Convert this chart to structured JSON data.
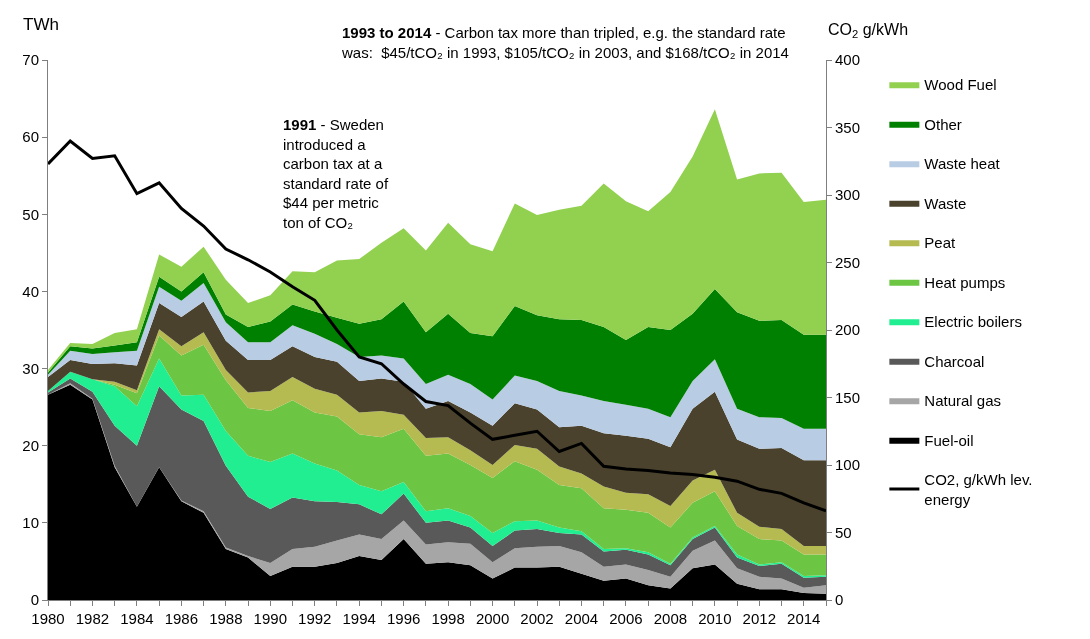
{
  "chart_data": {
    "type": "area",
    "stacked": true,
    "ylabel": "TWh",
    "y2label": "CO$_{2}$ g/kWh",
    "x": [
      1980,
      1981,
      1982,
      1983,
      1984,
      1985,
      1986,
      1987,
      1988,
      1989,
      1990,
      1991,
      1992,
      1993,
      1994,
      1995,
      1996,
      1997,
      1998,
      1999,
      2000,
      2001,
      2002,
      2003,
      2004,
      2005,
      2006,
      2007,
      2008,
      2009,
      2010,
      2011,
      2012,
      2013,
      2014,
      2015
    ],
    "xlim": [
      1980,
      2015
    ],
    "xticks": [
      1980,
      {
        "value": 1981,
        "label": null
      },
      1982,
      {
        "value": 1983,
        "label": null
      },
      1984,
      {
        "value": 1985,
        "label": null
      },
      1986,
      {
        "value": 1987,
        "label": null
      },
      1988,
      {
        "value": 1989,
        "label": null
      },
      1990,
      {
        "value": 1991,
        "label": null
      },
      1992,
      {
        "value": 1993,
        "label": null
      },
      1994,
      {
        "value": 1995,
        "label": null
      },
      1996,
      {
        "value": 1997,
        "label": null
      },
      1998,
      {
        "value": 1999,
        "label": null
      },
      2000,
      {
        "value": 2001,
        "label": null
      },
      2002,
      {
        "value": 2003,
        "label": null
      },
      2004,
      {
        "value": 2005,
        "label": null
      },
      2006,
      {
        "value": 2007,
        "label": null
      },
      2008,
      {
        "value": 2009,
        "label": null
      },
      2010,
      {
        "value": 2011,
        "label": null
      },
      2012,
      {
        "value": 2013,
        "label": null
      },
      2014,
      {
        "value": 2015,
        "label": null
      }
    ],
    "ylim": [
      0,
      70
    ],
    "yticks": [
      0,
      10,
      20,
      30,
      40,
      50,
      60,
      70
    ],
    "y2lim": [
      0,
      400
    ],
    "y2ticks": [
      0,
      50,
      100,
      150,
      200,
      250,
      300,
      350,
      400
    ],
    "legend": "right",
    "series": [
      {
        "name": "Fuel-oil",
        "color": "#000000",
        "values": [
          26.6,
          27.9,
          26.0,
          17.2,
          12.1,
          17.2,
          12.8,
          11.3,
          6.6,
          5.5,
          3.1,
          4.3,
          4.3,
          4.8,
          5.7,
          5.2,
          7.9,
          4.7,
          4.9,
          4.5,
          2.8,
          4.2,
          4.2,
          4.3,
          3.4,
          2.5,
          2.8,
          1.9,
          1.5,
          4.1,
          4.6,
          2.1,
          1.4,
          1.4,
          0.9,
          0.8
        ]
      },
      {
        "name": "Natural gas",
        "color": "#a6a6a6",
        "values": [
          0,
          0.2,
          0.1,
          0.2,
          0,
          0,
          0.1,
          0.2,
          0.2,
          0.2,
          1.7,
          2.3,
          2.6,
          2.9,
          2.8,
          2.7,
          2.4,
          2.5,
          2.6,
          2.8,
          2.1,
          2.5,
          2.7,
          2.7,
          2.8,
          1.8,
          1.8,
          2.0,
          1.5,
          2.3,
          3.1,
          2.0,
          1.6,
          1.4,
          0.7,
          1.1
        ]
      },
      {
        "name": "Charcoal",
        "color": "#595959",
        "values": [
          0.3,
          0.6,
          0.9,
          5.2,
          7.9,
          10.5,
          11.8,
          11.7,
          10.6,
          7.7,
          7.0,
          6.7,
          5.9,
          5.0,
          3.9,
          3.2,
          3.5,
          2.8,
          2.8,
          2.1,
          2.1,
          2.3,
          2.3,
          1.7,
          2.3,
          2.0,
          1.9,
          2.0,
          1.5,
          1.5,
          1.7,
          1.4,
          1.4,
          1.9,
          1.3,
          1.1
        ]
      },
      {
        "name": "Electric boilers",
        "color": "#21ee91",
        "values": [
          0.2,
          0.9,
          1.6,
          5.1,
          5.1,
          3.6,
          1.8,
          3.4,
          4.5,
          5.3,
          6.1,
          5.7,
          4.9,
          4.1,
          2.5,
          3.0,
          1.5,
          1.5,
          1.6,
          1.5,
          1.7,
          1.2,
          1.1,
          0.7,
          0.4,
          0.3,
          0.2,
          0.3,
          0.2,
          0.2,
          0.2,
          0.4,
          0.2,
          0.2,
          0.2,
          0.2
        ]
      },
      {
        "name": "Heat pumps",
        "color": "#6cc644",
        "values": [
          0,
          0,
          0,
          0.2,
          1.7,
          3.0,
          5.2,
          6.5,
          6.6,
          6.2,
          6.6,
          6.9,
          6.6,
          7.0,
          6.6,
          7.0,
          6.9,
          7.2,
          7.1,
          6.6,
          7.1,
          7.8,
          6.6,
          5.5,
          5.6,
          5.3,
          5.0,
          5.1,
          4.7,
          4.5,
          4.5,
          3.7,
          3.3,
          2.8,
          2.8,
          2.7
        ]
      },
      {
        "name": "Peat",
        "color": "#b5bb50",
        "values": [
          0,
          0,
          0,
          0.4,
          0.4,
          0.8,
          1.2,
          1.6,
          1.3,
          2.0,
          2.6,
          3.0,
          3.1,
          2.8,
          2.8,
          3.4,
          1.8,
          2.3,
          2.1,
          1.9,
          1.7,
          2.1,
          2.7,
          2.4,
          1.9,
          2.8,
          2.2,
          2.4,
          2.8,
          2.9,
          2.8,
          1.7,
          1.6,
          1.5,
          1.1,
          1.1
        ]
      },
      {
        "name": "Waste",
        "color": "#4a422c",
        "values": [
          1.8,
          1.5,
          2.0,
          2.4,
          3.2,
          3.4,
          3.8,
          4.0,
          3.8,
          4.2,
          4.0,
          4.0,
          4.1,
          4.3,
          4.1,
          4.2,
          4.3,
          3.8,
          4.7,
          4.9,
          5.1,
          5.4,
          5.1,
          5.1,
          6.2,
          6.9,
          7.4,
          7.2,
          7.6,
          9.3,
          10.1,
          9.5,
          10.1,
          10.5,
          11.1,
          11.1
        ]
      },
      {
        "name": "Waste heat",
        "color": "#b8cce4",
        "values": [
          0.3,
          1.2,
          1.3,
          1.4,
          1.9,
          2.1,
          2.1,
          2.4,
          2.4,
          2.3,
          2.3,
          2.7,
          3.0,
          2.3,
          3.1,
          3.0,
          3.0,
          3.2,
          3.4,
          3.7,
          3.4,
          3.6,
          3.7,
          4.7,
          3.9,
          4.2,
          4.0,
          3.9,
          3.9,
          3.6,
          4.2,
          4.0,
          4.1,
          3.9,
          4.1,
          4.1
        ]
      },
      {
        "name": "Other",
        "color": "#008000",
        "values": [
          0.3,
          0.6,
          0.7,
          0.9,
          1.1,
          1.3,
          1.2,
          1.4,
          1.0,
          2.0,
          2.7,
          2.7,
          2.9,
          3.4,
          4.3,
          4.7,
          7.4,
          6.7,
          7.9,
          6.6,
          8.2,
          9.0,
          8.5,
          9.3,
          9.8,
          9.6,
          8.4,
          10.6,
          11.3,
          8.7,
          9.1,
          12.5,
          12.5,
          12.7,
          12.2,
          12.2
        ]
      },
      {
        "name": "Wood Fuel",
        "color": "#92d050",
        "values": [
          0.3,
          0.4,
          0.6,
          1.6,
          1.7,
          2.9,
          3.2,
          3.3,
          4.5,
          3.1,
          3.4,
          4.3,
          5.1,
          7.4,
          8.4,
          9.9,
          9.5,
          10.6,
          11.8,
          11.5,
          11.0,
          13.3,
          13.0,
          14.2,
          14.8,
          18.6,
          18.0,
          15.0,
          17.9,
          20.4,
          23.3,
          17.2,
          19.1,
          19.1,
          17.2,
          17.5
        ]
      },
      {
        "name": "CO2, g/kWh lev. energy",
        "type": "line",
        "axis": "y2",
        "color": "#000000",
        "values": [
          323,
          340,
          327,
          329,
          301,
          309,
          290,
          277,
          260,
          252,
          243,
          232,
          222,
          200,
          180,
          175,
          160,
          147,
          144,
          131,
          119,
          122,
          125,
          110,
          116,
          99,
          97,
          96,
          94,
          93,
          91,
          88,
          82,
          79,
          72,
          66
        ]
      }
    ],
    "annotations": [
      "1991 - Sweden introduced a carbon tax at a standard rate of $44 per metric ton of CO₂",
      "1993 to 2014 - Carbon tax more than tripled, e.g. the standard rate was:  $45/tCO₂ in 1993, $105/tCO₂ in 2003, and $168/tCO₂ in 2014"
    ]
  }
}
